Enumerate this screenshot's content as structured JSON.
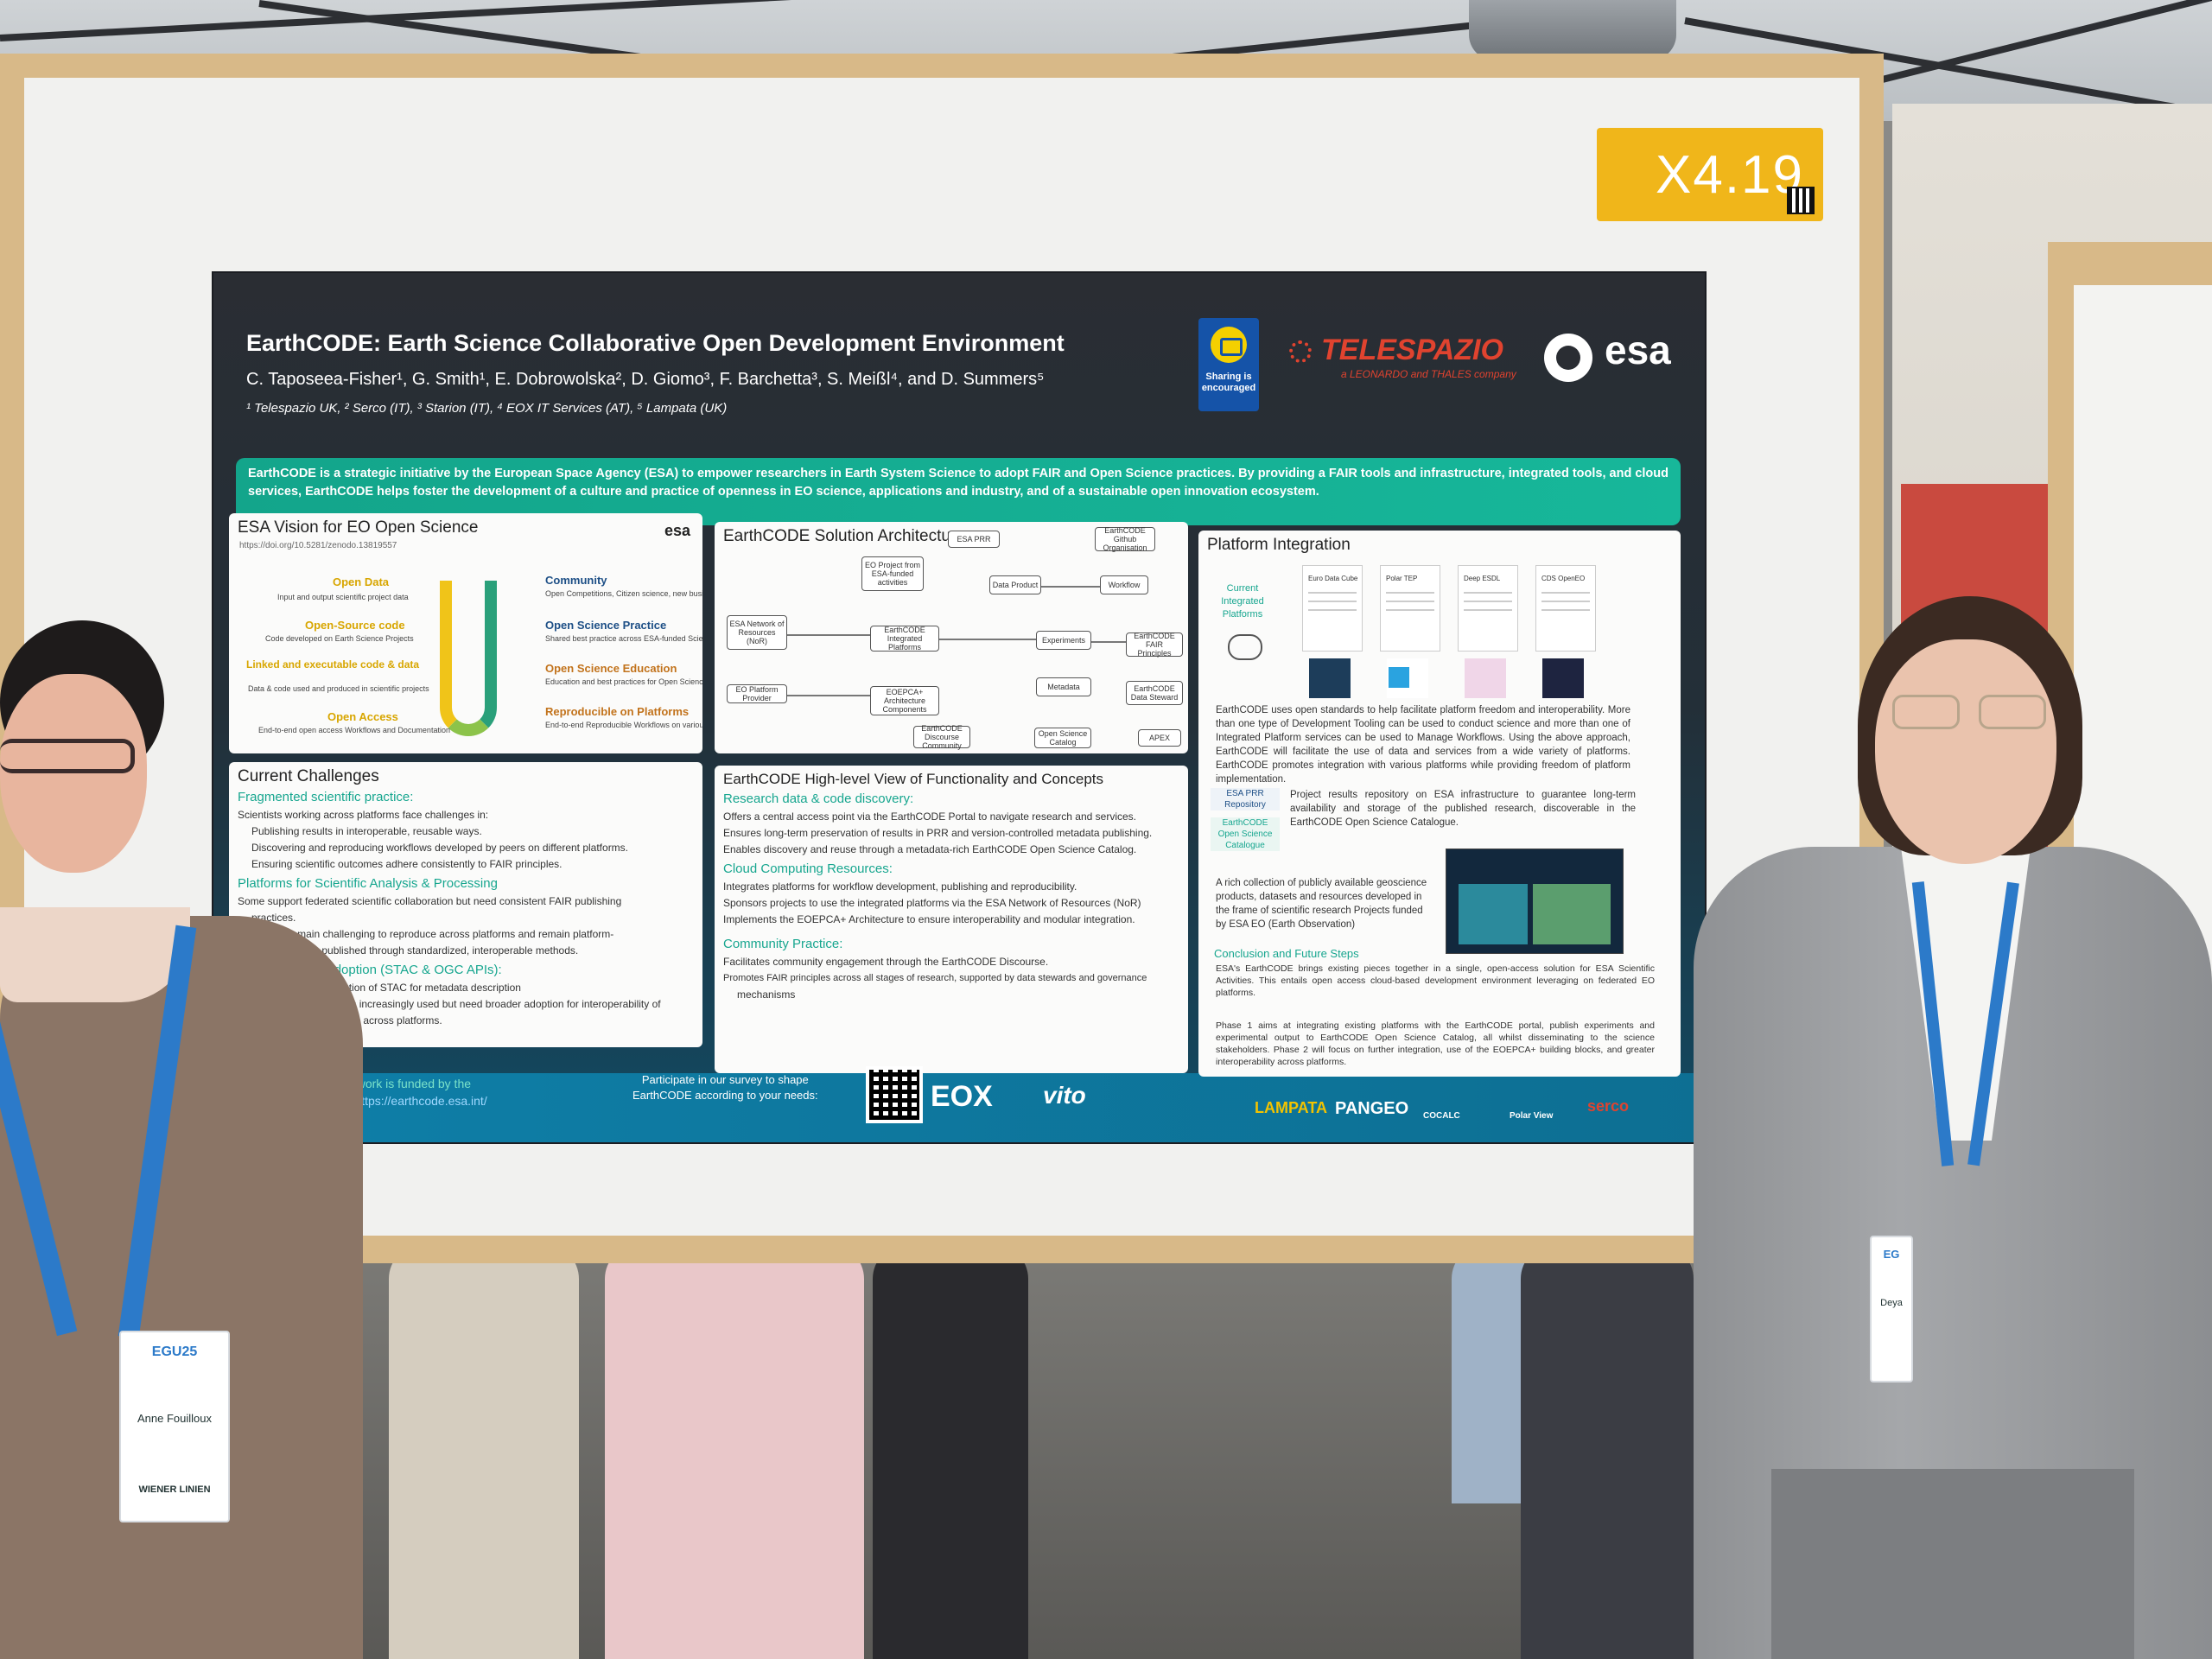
{
  "booth_sign": {
    "label": "X4.19"
  },
  "poster": {
    "title": "EarthCODE:  Earth Science Collaborative Open Development Environment",
    "authors": "C. Taposeea-Fisher¹, G. Smith¹, E. Dobrowolska², D. Giomo³, F. Barchetta³, S. Meißl⁴, and D. Summers⁵",
    "affiliations": "¹ Telespazio UK, ² Serco (IT), ³ Starion (IT), ⁴ EOX IT Services (AT), ⁵ Lampata (UK)",
    "sharing_badge": "Sharing is encouraged",
    "logos": {
      "telespazio": "TELESPAZIO",
      "telespazio_sub": "a LEONARDO and THALES company",
      "esa": "esa"
    },
    "intro": "EarthCODE is a strategic initiative by the European Space Agency (ESA) to empower researchers in Earth System Science to adopt FAIR and Open Science practices. By providing a FAIR tools and infrastructure, integrated tools, and cloud services, EarthCODE helps foster the development of a culture and practice of openness in EO science, applications and industry, and of a sustainable open innovation ecosystem.",
    "vision": {
      "title": "ESA Vision for EO Open Science",
      "doi": "https://doi.org/10.5281/zenodo.13819557",
      "esa": "esa",
      "left_labels": [
        "Open Data",
        "Open-Source code",
        "Linked and executable code & data",
        "Open Access"
      ],
      "left_desc": [
        "Input and output scientific project data",
        "Code developed on Earth Science Projects",
        "Data & code used and produced in scientific projects",
        "End-to-end open access Workflows and Documentation"
      ],
      "right_labels": [
        "Community",
        "Open Science Practice",
        "Open Science Education",
        "Reproducible on Platforms"
      ],
      "right_desc": [
        "Open Competitions, Citizen science, new business models, open innovation",
        "Shared best practice across ESA-funded Science and Innovation activities",
        "Education and best practices for Open Science and Open Data",
        "End-to-end Reproducible Workflows on various infrastructures"
      ]
    },
    "architecture": {
      "title": "EarthCODE Solution Architecture",
      "boxes": [
        "ESA PRR",
        "EarthCODE Github Organisation",
        "EO Project from ESA-funded activities",
        "Data Product",
        "Workflow",
        "ESA Network of Resources (NoR)",
        "EarthCODE Integrated Platforms",
        "Experiments",
        "EarthCODE FAIR Principles",
        "Metadata",
        "EarthCODE Data Steward",
        "EO Platform Provider",
        "EOEPCA+ Architecture Components",
        "EarthCODE Discourse Community",
        "Open Science Catalog",
        "APEX"
      ]
    },
    "platform": {
      "title": "Platform Integration",
      "current": "Current Integrated Platforms",
      "cards": [
        "Euro Data Cube",
        "Polar TEP",
        "Deep ESDL",
        "CDS OpenEO"
      ],
      "body1": "EarthCODE uses open standards to help facilitate platform freedom and interoperability. More than one type of Development Tooling can be used to conduct science and more than one of Integrated Platform services can be used to Manage Workflows. Using the above approach, EarthCODE will facilitate the use of data and services from a wide variety of platforms. EarthCODE promotes integration with various platforms while providing freedom of platform implementation.",
      "prr_tag": "ESA PRR Repository",
      "catalogue_tag": "EarthCODE Open Science Catalogue",
      "prr_text": "Project results repository on ESA infrastructure to guarantee long-term availability and storage of the published research, discoverable in the EarthCODE Open Science Catalogue.",
      "collection_text": "A rich collection of publicly available geoscience products, datasets and resources developed in the frame of scientific research Projects funded by ESA EO (Earth Observation)",
      "conclusion_title": "Conclusion and Future Steps",
      "conclusion1": "ESA's EarthCODE brings existing pieces together in a single, open-access solution for ESA Scientific Activities. This entails open access cloud-based development environment leveraging on federated EO platforms.",
      "conclusion2": "Phase 1 aims at integrating existing platforms with the EarthCODE portal, publish experiments and experimental output to EarthCODE Open Science Catalog, all whilst disseminating to the science stakeholders. Phase 2 will focus on further integration, use of the EOEPCA+ building blocks, and greater interoperability across platforms."
    },
    "challenges": {
      "title": "Current Challenges",
      "h1": "Fragmented scientific practice:",
      "b1": "Scientists working across platforms face challenges in:",
      "b1a": "Publishing results in interoperable, reusable ways.",
      "b1b": "Discovering and reproducing workflows developed by peers on different platforms.",
      "b1c": "Ensuring scientific outcomes adhere consistently to FAIR principles.",
      "h2": "Platforms for Scientific Analysis & Processing",
      "b2": "Some support federated scientific collaboration but need consistent FAIR publishing",
      "b2b": "practices.",
      "b3": "Workflows remain challenging to reproduce across platforms and remain platform-",
      "b3b": "specific unless published through standardized, interoperable methods.",
      "h3": "ndard Adoption (STAC & OGC APIs):",
      "b4": "asing adoption of STAC for metadata description",
      "b5": "PI standards increasingly used but need broader adoption for interoperability of",
      "b5b": "c workflows across platforms."
    },
    "functionality": {
      "title": "EarthCODE High-level View of Functionality and Concepts",
      "h1": "Research data & code discovery:",
      "b1": "Offers a central access point via the EarthCODE Portal to navigate research and services.",
      "b2": "Ensures long-term preservation of results in PRR and version-controlled metadata publishing.",
      "b3": "Enables discovery and reuse through a metadata-rich EarthCODE Open Science Catalog.",
      "h2": "Cloud Computing Resources:",
      "b4": "Integrates platforms for workflow development, publishing and reproducibility.",
      "b5": "Sponsors projects to use the integrated platforms via the ESA Network of Resources (NoR)",
      "b6": "Implements the EOEPCA+ Architecture to ensure interoperability and modular integration.",
      "h3": "Community Practice:",
      "b7": "Facilitates community engagement through the EarthCODE Discourse.",
      "b8": "Promotes FAIR principles across all stages of research, supported by data stewards and governance",
      "b8b": "mechanisms"
    },
    "footer": {
      "ack": "edgement: this work is funded by the",
      "ack2": "Space Agency https://earthcode.esa.int/",
      "survey1": "Participate in our survey to shape",
      "survey2": "EarthCODE according to your needs:",
      "logos": [
        "EOX",
        "vito",
        "LAMPATA",
        "PANGEO",
        "COCALC",
        "Polar View",
        "serco"
      ]
    }
  },
  "people": {
    "left_badge_event": "EGU25",
    "left_badge_name": "Anne Fouilloux",
    "left_badge_sponsor": "WIENER LINIEN",
    "right_badge_event": "EG",
    "right_badge_name": "Deya"
  }
}
